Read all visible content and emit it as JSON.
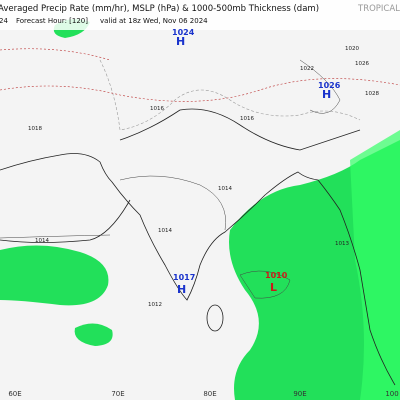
{
  "header": {
    "title": "Averaged Precip Rate (mm/hr), MSLP (hPa) & 1000-500mb Thickness (dam)",
    "brand": "TROPICAL",
    "run": "24",
    "forecast": "Forecast Hour: [120]",
    "valid": "valid at 18z Wed, Nov 06 2024"
  },
  "map": {
    "lon_labels": [
      "60E",
      "70E",
      "80E",
      "90E",
      "100"
    ],
    "centers": [
      {
        "pressure": "1017",
        "symbol": "H"
      },
      {
        "pressure": "1010",
        "symbol": "L"
      },
      {
        "pressure": "1024",
        "symbol": "H"
      },
      {
        "pressure": "1026",
        "symbol": "H"
      }
    ],
    "isobar_labels": [
      "1014",
      "1012",
      "1018",
      "1016",
      "1014",
      "1020",
      "1022",
      "1026",
      "1028",
      "1013",
      "1014",
      "1016"
    ]
  }
}
